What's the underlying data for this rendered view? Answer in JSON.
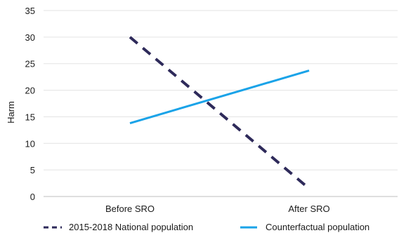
{
  "chart_data": {
    "type": "line",
    "categories": [
      "Before SRO",
      "After SRO"
    ],
    "series": [
      {
        "name": "2015-2018 National population",
        "values": [
          30,
          1.5
        ],
        "color": "#2e2a5a",
        "style": "dashed"
      },
      {
        "name": "Counterfactual population",
        "values": [
          13.8,
          23.7
        ],
        "color": "#1aa3e8",
        "style": "solid"
      }
    ],
    "title": "",
    "xlabel": "",
    "ylabel": "Harm",
    "ylim": [
      0,
      35
    ],
    "yticks": [
      0,
      5,
      10,
      15,
      20,
      25,
      30,
      35
    ],
    "grid": true,
    "legend_placement": "bottom"
  }
}
